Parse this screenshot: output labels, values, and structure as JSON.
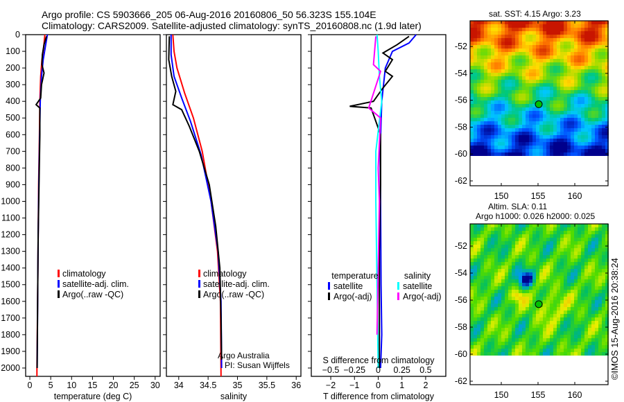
{
  "header": {
    "line1": "Argo profile: CS 5903666_205 06-Aug-2016 20160806_50 56.323S 155.104E",
    "line2": "Climatology: CARS2009. Satellite-adjusted climatology: synTS_20160808.nc (1.9d later)"
  },
  "credit": "©IMOS 15-Aug-2016 20:38:24",
  "annotation": {
    "line1": "Argo Australia",
    "line2": "PI: Susan Wijffels"
  },
  "colors": {
    "clim": "#ff0000",
    "sat": "#0000ff",
    "argo": "#000000",
    "ssat": "#00ffff",
    "sargo": "#ff00ff"
  },
  "chart_data": [
    {
      "type": "line",
      "xlabel": "temperature (deg C)",
      "xlim": [
        -1,
        31.2
      ],
      "ylim": [
        2050,
        0
      ],
      "xticks": [
        "0",
        "5",
        "10",
        "15",
        "20",
        "25",
        "30"
      ],
      "yticks": [
        "0",
        "100",
        "200",
        "300",
        "400",
        "500",
        "600",
        "700",
        "800",
        "900",
        "1000",
        "1100",
        "1200",
        "1300",
        "1400",
        "1500",
        "1600",
        "1700",
        "1800",
        "1900",
        "2000"
      ],
      "legend": [
        "climatology",
        "satellite-adj. clim.",
        "Argo(..raw -QC)"
      ],
      "series": [
        {
          "name": "climatology",
          "color": "#ff0000",
          "points": [
            [
              3.6,
              0
            ],
            [
              3.3,
              80
            ],
            [
              2.9,
              150
            ],
            [
              2.6,
              250
            ],
            [
              2.4,
              400
            ],
            [
              2.3,
              600
            ],
            [
              2.1,
              900
            ],
            [
              2.0,
              1200
            ],
            [
              1.9,
              1500
            ],
            [
              1.7,
              2000
            ],
            [
              1.7,
              2050
            ]
          ]
        },
        {
          "name": "satellite-adj. clim.",
          "color": "#0000ff",
          "points": [
            [
              4.2,
              0
            ],
            [
              3.8,
              60
            ],
            [
              3.2,
              150
            ],
            [
              2.8,
              250
            ],
            [
              2.5,
              400
            ],
            [
              2.35,
              600
            ],
            [
              2.15,
              900
            ],
            [
              2.0,
              1200
            ],
            [
              1.9,
              1500
            ],
            [
              1.75,
              2000
            ]
          ]
        },
        {
          "name": "Argo(..raw -QC)",
          "color": "#000000",
          "points": [
            [
              4.0,
              10
            ],
            [
              3.4,
              60
            ],
            [
              3.0,
              120
            ],
            [
              2.9,
              180
            ],
            [
              3.4,
              230
            ],
            [
              2.8,
              300
            ],
            [
              2.6,
              380
            ],
            [
              1.5,
              420
            ],
            [
              2.4,
              440
            ],
            [
              2.4,
              600
            ],
            [
              2.2,
              900
            ],
            [
              2.0,
              1200
            ],
            [
              1.9,
              1500
            ],
            [
              1.75,
              2000
            ]
          ]
        }
      ]
    },
    {
      "type": "line",
      "xlabel": "salinity",
      "xlim": [
        33.79,
        36.08
      ],
      "ylim": [
        2050,
        0
      ],
      "xticks": [
        "34",
        "34.5",
        "35",
        "35.5",
        "36"
      ],
      "legend": [
        "climatology",
        "satellite-adj. clim.",
        "Argo(..raw -QC)"
      ],
      "series": [
        {
          "name": "climatology",
          "color": "#ff0000",
          "points": [
            [
              33.9,
              0
            ],
            [
              33.92,
              100
            ],
            [
              33.97,
              200
            ],
            [
              34.1,
              350
            ],
            [
              34.25,
              500
            ],
            [
              34.4,
              700
            ],
            [
              34.55,
              1000
            ],
            [
              34.66,
              1300
            ],
            [
              34.71,
              1600
            ],
            [
              34.72,
              2050
            ]
          ]
        },
        {
          "name": "satellite-adj. clim.",
          "color": "#0000ff",
          "points": [
            [
              33.87,
              0
            ],
            [
              33.87,
              120
            ],
            [
              33.92,
              250
            ],
            [
              34.05,
              380
            ],
            [
              34.2,
              520
            ],
            [
              34.38,
              720
            ],
            [
              34.55,
              1000
            ],
            [
              34.67,
              1300
            ],
            [
              34.72,
              1600
            ],
            [
              34.73,
              2000
            ]
          ]
        },
        {
          "name": "Argo(..raw -QC)",
          "color": "#000000",
          "points": [
            [
              33.84,
              10
            ],
            [
              33.83,
              150
            ],
            [
              33.88,
              250
            ],
            [
              33.95,
              340
            ],
            [
              33.9,
              420
            ],
            [
              34.05,
              450
            ],
            [
              34.18,
              550
            ],
            [
              34.35,
              700
            ],
            [
              34.52,
              900
            ],
            [
              34.63,
              1150
            ],
            [
              34.7,
              1400
            ],
            [
              34.72,
              1700
            ],
            [
              34.73,
              1950
            ]
          ]
        }
      ]
    },
    {
      "type": "line",
      "xlabel": "T difference from climatology",
      "x2label": "S difference from climatology",
      "xlim": [
        -2.82,
        2.85
      ],
      "ylim": [
        2050,
        0
      ],
      "xticks": [
        "-2",
        "-1",
        "0",
        "1",
        "2"
      ],
      "x2ticks": [
        "-0.5",
        "-0.25",
        "0",
        "0.25",
        "0.5"
      ],
      "legend_headers": [
        "temperature",
        "salinity"
      ],
      "legend": [
        "satellite",
        "Argo(-adj)",
        "satellite",
        "Argo(-adj)"
      ],
      "series": [
        {
          "name": "T satellite",
          "color": "#0000ff",
          "points": [
            [
              1.6,
              0
            ],
            [
              1.3,
              50
            ],
            [
              0.6,
              100
            ],
            [
              0.3,
              200
            ],
            [
              0.15,
              400
            ],
            [
              0.08,
              700
            ],
            [
              0.1,
              1000
            ],
            [
              0.12,
              1500
            ],
            [
              0.15,
              1800
            ],
            [
              0.1,
              2000
            ]
          ]
        },
        {
          "name": "T Argo(-adj)",
          "color": "#000000",
          "points": [
            [
              1.3,
              10
            ],
            [
              0.8,
              60
            ],
            [
              0.2,
              110
            ],
            [
              0.6,
              150
            ],
            [
              0.3,
              220
            ],
            [
              0.6,
              250
            ],
            [
              0.2,
              320
            ],
            [
              -0.2,
              400
            ],
            [
              -1.2,
              430
            ],
            [
              -0.3,
              440
            ],
            [
              0.1,
              600
            ],
            [
              0.1,
              900
            ],
            [
              0.05,
              1300
            ],
            [
              0.05,
              2000
            ]
          ]
        },
        {
          "name": "S satellite",
          "color": "#00ffff",
          "points": [
            [
              -0.05,
              0
            ],
            [
              0.0,
              100
            ],
            [
              0.05,
              250
            ],
            [
              0.15,
              400
            ],
            [
              -0.1,
              700
            ],
            [
              -0.1,
              1000
            ],
            [
              -0.05,
              1500
            ],
            [
              0.0,
              2000
            ]
          ]
        },
        {
          "name": "S Argo(-adj)",
          "color": "#ff00ff",
          "points": [
            [
              -0.1,
              10
            ],
            [
              -0.2,
              180
            ],
            [
              0.1,
              220
            ],
            [
              -0.4,
              440
            ],
            [
              0.1,
              500
            ],
            [
              0.0,
              800
            ],
            [
              0.05,
              1000
            ],
            [
              0.0,
              1400
            ],
            [
              -0.05,
              1800
            ]
          ]
        }
      ]
    }
  ],
  "maps": [
    {
      "title": "sat. SST: 4.15 Argo: 3.23",
      "lat_ticks": [
        "-52",
        "-54",
        "-56",
        "-58",
        "-60",
        "-62"
      ],
      "lon_ticks": [
        "150",
        "155",
        "160"
      ],
      "argo_lon": 155.1,
      "argo_lat": -56.3
    },
    {
      "title": "Altim. SLA: 0.11",
      "title2": "Argo h1000: 0.026 h2000: 0.025",
      "lat_ticks": [
        "-52",
        "-54",
        "-56",
        "-58",
        "-60",
        "-62"
      ],
      "lon_ticks": [
        "150",
        "155",
        "160"
      ],
      "argo_lon": 155.1,
      "argo_lat": -56.3
    }
  ]
}
